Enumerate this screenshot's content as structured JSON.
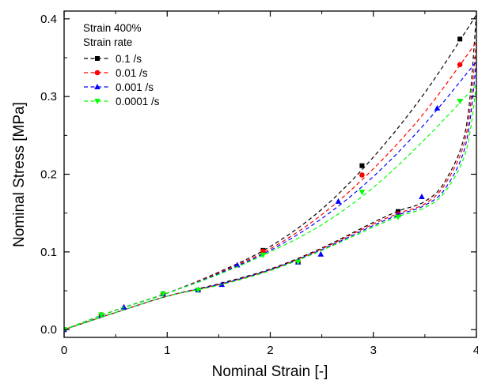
{
  "chart_data": {
    "type": "line",
    "xlabel": "Nominal Strain [-]",
    "ylabel": "Nominal Stress [MPa]",
    "xlim": [
      0,
      4
    ],
    "ylim": [
      -0.01,
      0.41
    ],
    "x_ticks": [
      "0",
      "1",
      "2",
      "3",
      "4"
    ],
    "y_ticks": [
      "0.0",
      "0.1",
      "0.2",
      "0.3",
      "0.4"
    ],
    "grid": false,
    "legend_position": "top-left",
    "legend_header": [
      "Strain 400%",
      "Strain rate"
    ],
    "series": [
      {
        "name": "0.1 /s",
        "color": "#000000",
        "marker": "square",
        "loading": [
          [
            0,
            0
          ],
          [
            0.5,
            0.025
          ],
          [
            1.0,
            0.047
          ],
          [
            1.5,
            0.074
          ],
          [
            2.0,
            0.107
          ],
          [
            2.5,
            0.155
          ],
          [
            3.0,
            0.222
          ],
          [
            3.5,
            0.305
          ],
          [
            4.0,
            0.405
          ]
        ],
        "unloading": [
          [
            4.0,
            0.405
          ],
          [
            3.9,
            0.26
          ],
          [
            3.7,
            0.192
          ],
          [
            3.5,
            0.165
          ],
          [
            3.25,
            0.153
          ],
          [
            3.0,
            0.138
          ],
          [
            2.5,
            0.105
          ],
          [
            2.0,
            0.078
          ],
          [
            1.5,
            0.059
          ],
          [
            1.0,
            0.043
          ],
          [
            0.5,
            0.022
          ],
          [
            0,
            0
          ]
        ],
        "markers": [
          [
            0,
            0
          ],
          [
            0.36,
            0.019
          ],
          [
            0.96,
            0.046
          ],
          [
            1.3,
            0.051
          ],
          [
            1.93,
            0.102
          ],
          [
            2.27,
            0.087
          ],
          [
            2.89,
            0.211
          ],
          [
            3.24,
            0.152
          ],
          [
            3.84,
            0.374
          ]
        ]
      },
      {
        "name": "0.01 /s",
        "color": "#ff0000",
        "marker": "circle",
        "loading": [
          [
            0,
            0
          ],
          [
            0.5,
            0.025
          ],
          [
            1.0,
            0.047
          ],
          [
            1.5,
            0.073
          ],
          [
            2.0,
            0.104
          ],
          [
            2.5,
            0.148
          ],
          [
            3.0,
            0.207
          ],
          [
            3.5,
            0.28
          ],
          [
            4.0,
            0.37
          ]
        ],
        "unloading": [
          [
            4.0,
            0.37
          ],
          [
            3.9,
            0.25
          ],
          [
            3.7,
            0.188
          ],
          [
            3.5,
            0.162
          ],
          [
            3.25,
            0.15
          ],
          [
            3.0,
            0.136
          ],
          [
            2.5,
            0.104
          ],
          [
            2.0,
            0.077
          ],
          [
            1.5,
            0.058
          ],
          [
            1.0,
            0.043
          ],
          [
            0.5,
            0.022
          ],
          [
            0,
            0
          ]
        ],
        "markers": [
          [
            0,
            0
          ],
          [
            0.36,
            0.019
          ],
          [
            0.96,
            0.046
          ],
          [
            1.3,
            0.051
          ],
          [
            1.93,
            0.101
          ],
          [
            2.27,
            0.087
          ],
          [
            2.89,
            0.199
          ],
          [
            3.24,
            0.149
          ],
          [
            3.84,
            0.341
          ]
        ]
      },
      {
        "name": "0.001 /s",
        "color": "#0000ff",
        "marker": "triangle-up",
        "loading": [
          [
            0,
            0
          ],
          [
            0.5,
            0.025
          ],
          [
            1.0,
            0.047
          ],
          [
            1.5,
            0.072
          ],
          [
            2.0,
            0.102
          ],
          [
            2.5,
            0.143
          ],
          [
            3.0,
            0.197
          ],
          [
            3.5,
            0.265
          ],
          [
            4.0,
            0.345
          ]
        ],
        "unloading": [
          [
            4.0,
            0.345
          ],
          [
            3.9,
            0.24
          ],
          [
            3.7,
            0.182
          ],
          [
            3.5,
            0.16
          ],
          [
            3.25,
            0.148
          ],
          [
            3.0,
            0.134
          ],
          [
            2.5,
            0.103
          ],
          [
            2.0,
            0.077
          ],
          [
            1.5,
            0.058
          ],
          [
            1.0,
            0.043
          ],
          [
            0.5,
            0.022
          ],
          [
            0,
            0
          ]
        ],
        "markers": [
          [
            0,
            0
          ],
          [
            0.36,
            0.019
          ],
          [
            0.58,
            0.029
          ],
          [
            0.96,
            0.046
          ],
          [
            1.3,
            0.051
          ],
          [
            1.53,
            0.058
          ],
          [
            1.68,
            0.083
          ],
          [
            2.27,
            0.087
          ],
          [
            2.49,
            0.097
          ],
          [
            2.66,
            0.165
          ],
          [
            3.24,
            0.148
          ],
          [
            3.47,
            0.171
          ],
          [
            3.62,
            0.285
          ]
        ]
      },
      {
        "name": "0.0001 /s",
        "color": "#00ff00",
        "marker": "triangle-down",
        "loading": [
          [
            0,
            0
          ],
          [
            0.5,
            0.025
          ],
          [
            1.0,
            0.047
          ],
          [
            1.5,
            0.071
          ],
          [
            2.0,
            0.1
          ],
          [
            2.5,
            0.135
          ],
          [
            3.0,
            0.183
          ],
          [
            3.5,
            0.245
          ],
          [
            4.0,
            0.315
          ]
        ],
        "unloading": [
          [
            4.0,
            0.315
          ],
          [
            3.9,
            0.23
          ],
          [
            3.7,
            0.178
          ],
          [
            3.5,
            0.157
          ],
          [
            3.25,
            0.146
          ],
          [
            3.0,
            0.132
          ],
          [
            2.5,
            0.102
          ],
          [
            2.0,
            0.076
          ],
          [
            1.5,
            0.057
          ],
          [
            1.0,
            0.043
          ],
          [
            0.5,
            0.022
          ],
          [
            0,
            0
          ]
        ],
        "markers": [
          [
            0,
            0
          ],
          [
            0.36,
            0.019
          ],
          [
            0.96,
            0.046
          ],
          [
            1.3,
            0.051
          ],
          [
            1.93,
            0.096
          ],
          [
            2.27,
            0.087
          ],
          [
            2.89,
            0.177
          ],
          [
            3.24,
            0.145
          ],
          [
            3.84,
            0.294
          ]
        ]
      }
    ]
  }
}
